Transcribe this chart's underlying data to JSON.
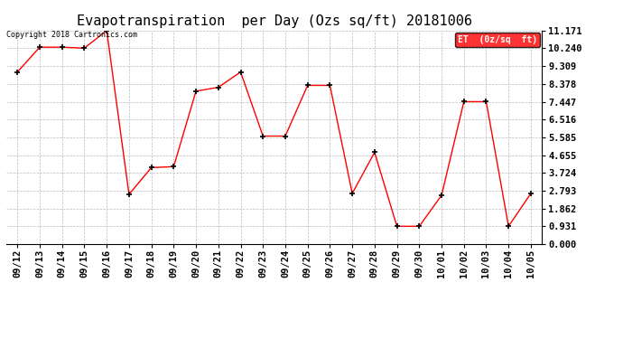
{
  "title": "Evapotranspiration  per Day (Ozs sq/ft) 20181006",
  "copyright": "Copyright 2018 Cartronics.com",
  "legend_label": "ET  (0z/sq  ft)",
  "dates": [
    "09/12",
    "09/13",
    "09/14",
    "09/15",
    "09/16",
    "09/17",
    "09/18",
    "09/19",
    "09/20",
    "09/21",
    "09/22",
    "09/23",
    "09/24",
    "09/25",
    "09/26",
    "09/27",
    "09/28",
    "09/29",
    "09/30",
    "10/01",
    "10/02",
    "10/03",
    "10/04",
    "10/05"
  ],
  "values": [
    9.0,
    10.3,
    10.3,
    10.25,
    11.171,
    2.6,
    4.0,
    4.05,
    8.0,
    8.2,
    9.0,
    5.65,
    5.65,
    8.3,
    8.3,
    2.65,
    4.8,
    0.93,
    0.93,
    2.55,
    7.45,
    7.45,
    0.93,
    2.65
  ],
  "yticks": [
    0.0,
    0.931,
    1.862,
    2.793,
    3.724,
    4.655,
    5.585,
    6.516,
    7.447,
    8.378,
    9.309,
    10.24,
    11.171
  ],
  "ymin": 0.0,
  "ymax": 11.171,
  "line_color": "red",
  "marker": "+",
  "marker_color": "black",
  "grid_color": "#bbbbbb",
  "bg_color": "white",
  "title_fontsize": 11,
  "tick_fontsize": 7.5,
  "copyright_fontsize": 6,
  "legend_bg": "red",
  "legend_text_color": "white",
  "legend_fontsize": 7
}
